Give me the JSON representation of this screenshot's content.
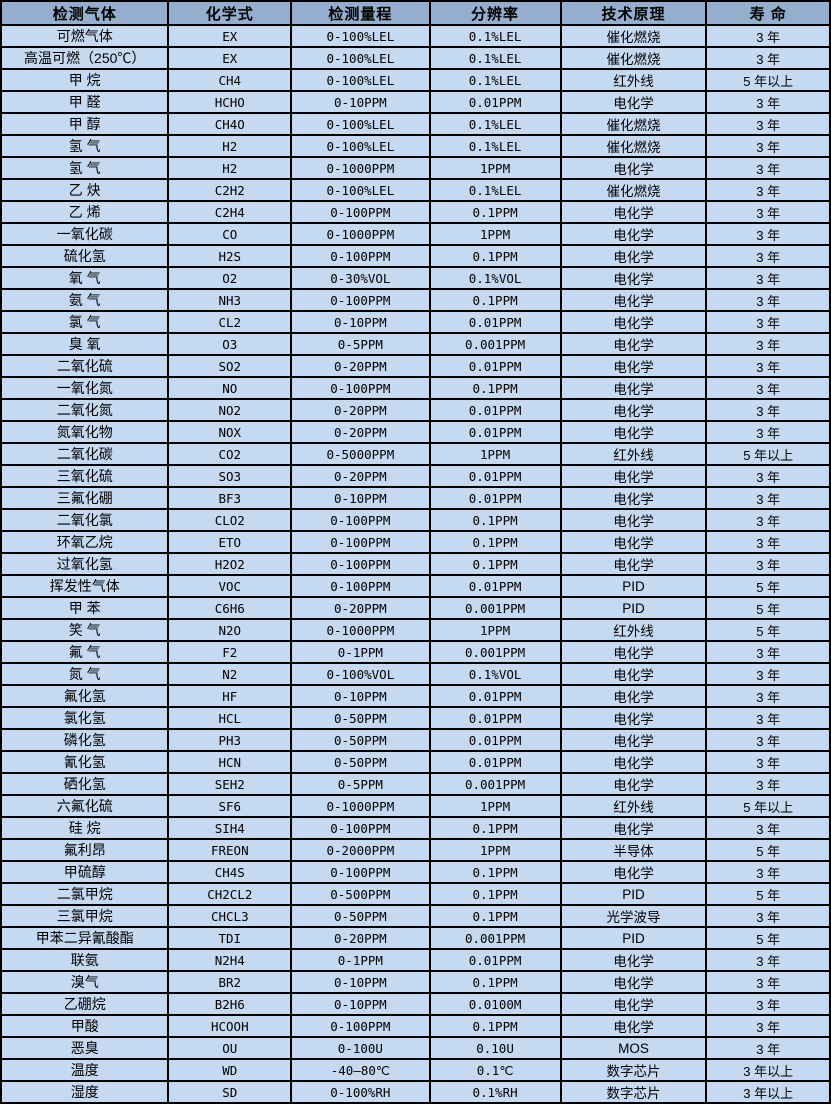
{
  "colors": {
    "header_bg": "#95aecd",
    "row_bg": "#c5d9f1",
    "grid_border": "#000000",
    "text": "#000000"
  },
  "table": {
    "header": [
      "检测气体",
      "化学式",
      "检测量程",
      "分辨率",
      "技术原理",
      "寿 命"
    ],
    "rows": [
      [
        "可燃气体",
        "EX",
        "0-100%LEL",
        "0.1%LEL",
        "催化燃烧",
        "3 年"
      ],
      [
        "高温可燃（250℃）",
        "EX",
        "0-100%LEL",
        "0.1%LEL",
        "催化燃烧",
        "3 年"
      ],
      [
        "甲 烷",
        "CH4",
        "0-100%LEL",
        "0.1%LEL",
        "红外线",
        "5 年以上"
      ],
      [
        "甲 醛",
        "HCHO",
        "0-10PPM",
        "0.01PPM",
        "电化学",
        "3 年"
      ],
      [
        "甲 醇",
        "CH4O",
        "0-100%LEL",
        "0.1%LEL",
        "催化燃烧",
        "3 年"
      ],
      [
        "氢 气",
        "H2",
        "0-100%LEL",
        "0.1%LEL",
        "催化燃烧",
        "3 年"
      ],
      [
        "氢 气",
        "H2",
        "0-1000PPM",
        "1PPM",
        "电化学",
        "3 年"
      ],
      [
        "乙 炔",
        "C2H2",
        "0-100%LEL",
        "0.1%LEL",
        "催化燃烧",
        "3 年"
      ],
      [
        "乙 烯",
        "C2H4",
        "0-100PPM",
        "0.1PPM",
        "电化学",
        "3 年"
      ],
      [
        "一氧化碳",
        "CO",
        "0-1000PPM",
        "1PPM",
        "电化学",
        "3 年"
      ],
      [
        "硫化氢",
        "H2S",
        "0-100PPM",
        "0.1PPM",
        "电化学",
        "3 年"
      ],
      [
        "氧 气",
        "O2",
        "0-30%VOL",
        "0.1%VOL",
        "电化学",
        "3 年"
      ],
      [
        "氨 气",
        "NH3",
        "0-100PPM",
        "0.1PPM",
        "电化学",
        "3 年"
      ],
      [
        "氯 气",
        "CL2",
        "0-10PPM",
        "0.01PPM",
        "电化学",
        "3 年"
      ],
      [
        "臭 氧",
        "O3",
        "0-5PPM",
        "0.001PPM",
        "电化学",
        "3 年"
      ],
      [
        "二氧化硫",
        "SO2",
        "0-20PPM",
        "0.01PPM",
        "电化学",
        "3 年"
      ],
      [
        "一氧化氮",
        "NO",
        "0-100PPM",
        "0.1PPM",
        "电化学",
        "3 年"
      ],
      [
        "二氧化氮",
        "NO2",
        "0-20PPM",
        "0.01PPM",
        "电化学",
        "3 年"
      ],
      [
        "氮氧化物",
        "NOX",
        "0-20PPM",
        "0.01PPM",
        "电化学",
        "3 年"
      ],
      [
        "二氧化碳",
        "CO2",
        "0-5000PPM",
        "1PPM",
        "红外线",
        "5 年以上"
      ],
      [
        "三氧化硫",
        "SO3",
        "0-20PPM",
        "0.01PPM",
        "电化学",
        "3 年"
      ],
      [
        "三氟化硼",
        "BF3",
        "0-10PPM",
        "0.01PPM",
        "电化学",
        "3 年"
      ],
      [
        "二氧化氯",
        "CLO2",
        "0-100PPM",
        "0.1PPM",
        "电化学",
        "3 年"
      ],
      [
        "环氧乙烷",
        "ETO",
        "0-100PPM",
        "0.1PPM",
        "电化学",
        "3 年"
      ],
      [
        "过氧化氢",
        "H2O2",
        "0-100PPM",
        "0.1PPM",
        "电化学",
        "3 年"
      ],
      [
        "挥发性气体",
        "VOC",
        "0-100PPM",
        "0.01PPM",
        "PID",
        "5 年"
      ],
      [
        "甲 苯",
        "C6H6",
        "0-20PPM",
        "0.001PPM",
        "PID",
        "5 年"
      ],
      [
        "笑 气",
        "N2O",
        "0-1000PPM",
        "1PPM",
        "红外线",
        "5 年"
      ],
      [
        "氟 气",
        "F2",
        "0-1PPM",
        "0.001PPM",
        "电化学",
        "3 年"
      ],
      [
        "氮 气",
        "N2",
        "0-100%VOL",
        "0.1%VOL",
        "电化学",
        "3 年"
      ],
      [
        "氟化氢",
        "HF",
        "0-10PPM",
        "0.01PPM",
        "电化学",
        "3 年"
      ],
      [
        "氯化氢",
        "HCL",
        "0-50PPM",
        "0.01PPM",
        "电化学",
        "3 年"
      ],
      [
        "磷化氢",
        "PH3",
        "0-50PPM",
        "0.01PPM",
        "电化学",
        "3 年"
      ],
      [
        "氰化氢",
        "HCN",
        "0-50PPM",
        "0.01PPM",
        "电化学",
        "3 年"
      ],
      [
        "硒化氢",
        "SEH2",
        "0-5PPM",
        "0.001PPM",
        "电化学",
        "3 年"
      ],
      [
        "六氟化硫",
        "SF6",
        "0-1000PPM",
        "1PPM",
        "红外线",
        "5 年以上"
      ],
      [
        "硅 烷",
        "SIH4",
        "0-100PPM",
        "0.1PPM",
        "电化学",
        "3 年"
      ],
      [
        "氟利昂",
        "FREON",
        "0-2000PPM",
        "1PPM",
        "半导体",
        "5 年"
      ],
      [
        "甲硫醇",
        "CH4S",
        "0-100PPM",
        "0.1PPM",
        "电化学",
        "3 年"
      ],
      [
        "二氯甲烷",
        "CH2CL2",
        "0-500PPM",
        "0.1PPM",
        "PID",
        "5 年"
      ],
      [
        "三氯甲烷",
        "CHCL3",
        "0-50PPM",
        "0.1PPM",
        "光学波导",
        "3 年"
      ],
      [
        "甲苯二异氰酸酯",
        "TDI",
        "0-20PPM",
        "0.001PPM",
        "PID",
        "5 年"
      ],
      [
        "联氨",
        "N2H4",
        "0-1PPM",
        "0.01PPM",
        "电化学",
        "3 年"
      ],
      [
        "溴气",
        "BR2",
        "0-10PPM",
        "0.1PPM",
        "电化学",
        "3 年"
      ],
      [
        "乙硼烷",
        "B2H6",
        "0-10PPM",
        "0.0100M",
        "电化学",
        "3 年"
      ],
      [
        "甲酸",
        "HCOOH",
        "0-100PPM",
        "0.1PPM",
        "电化学",
        "3 年"
      ],
      [
        "恶臭",
        "OU",
        "0-100U",
        "0.10U",
        "MOS",
        "3 年"
      ],
      [
        "温度",
        "WD",
        "-40—80℃",
        "0.1℃",
        "数字芯片",
        "3 年以上"
      ],
      [
        "湿度",
        "SD",
        "0-100%RH",
        "0.1%RH",
        "数字芯片",
        "3 年以上"
      ]
    ],
    "cell_names": [
      "gas-name-cell",
      "formula-cell",
      "range-cell",
      "resolution-cell",
      "principle-cell",
      "lifespan-cell"
    ]
  }
}
